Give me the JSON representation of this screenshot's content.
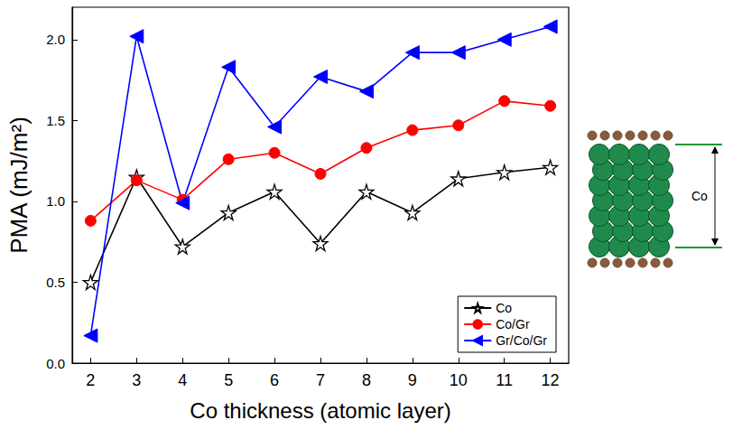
{
  "chart_data": {
    "type": "line",
    "x_label": "Co thickness (atomic layer)",
    "y_label": "PMA (mJ/m²)",
    "x": [
      2,
      3,
      4,
      5,
      6,
      7,
      8,
      9,
      10,
      11,
      12
    ],
    "series": [
      {
        "name": "Co",
        "color": "#000000",
        "marker": "star",
        "values": [
          0.5,
          1.15,
          0.72,
          0.93,
          1.06,
          0.74,
          1.06,
          0.93,
          1.14,
          1.18,
          1.21
        ]
      },
      {
        "name": "Co/Gr",
        "color": "#ff0000",
        "marker": "circle",
        "values": [
          0.88,
          1.13,
          1.01,
          1.26,
          1.3,
          1.17,
          1.33,
          1.44,
          1.47,
          1.62,
          1.59
        ]
      },
      {
        "name": "Gr/Co/Gr",
        "color": "#0000ff",
        "marker": "triangle-left",
        "values": [
          0.17,
          2.02,
          0.99,
          1.83,
          1.46,
          1.77,
          1.68,
          1.92,
          1.92,
          2.0,
          2.08
        ]
      }
    ],
    "xlim": [
      1.6,
      12.4
    ],
    "xticks": [
      2,
      3,
      4,
      5,
      6,
      7,
      8,
      9,
      10,
      11,
      12
    ],
    "ylim": [
      0,
      2.2
    ],
    "yticks": [
      {
        "value": 0,
        "label": "0.0"
      },
      0.5,
      {
        "value": 1,
        "label": "1.0"
      },
      1.5,
      {
        "value": 2,
        "label": "2.0"
      }
    ],
    "grid": false,
    "legend": "lower right",
    "annotations": [
      "Co"
    ]
  }
}
